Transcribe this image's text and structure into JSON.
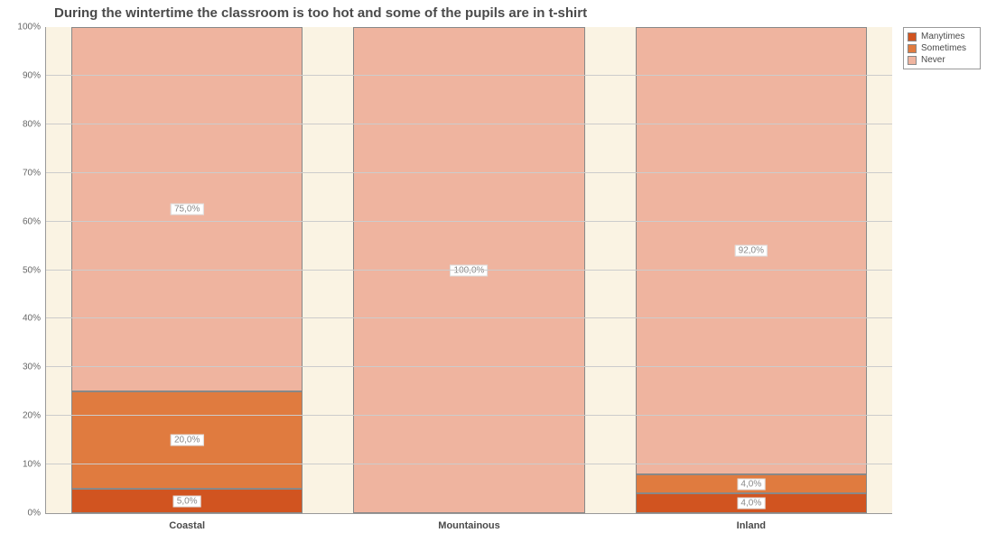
{
  "chart": {
    "type": "stacked_bar_100",
    "title": "During the wintertime the classroom is too hot and some of the pupils are in t-shirt",
    "title_fontsize": 15,
    "title_color": "#4a4a4a",
    "background_color": "#ffffff",
    "plot_background_color": "#faf3e3",
    "grid_color": "#cccccc",
    "axis_color": "#999999",
    "tick_font_size": 10,
    "tick_color": "#666666",
    "category_label_fontsize": 11,
    "category_label_color": "#4a4a4a",
    "ylim": [
      0,
      100
    ],
    "ytick_step": 10,
    "ytick_suffix": "%",
    "bar_width_ratio": 0.82,
    "gap_ratio": 0.18,
    "categories": [
      "Coastal",
      "Mountainous",
      "Inland"
    ],
    "series": [
      {
        "name": "Manytimes",
        "color": "#d15420"
      },
      {
        "name": "Sometimes",
        "color": "#e07b3f"
      },
      {
        "name": "Never",
        "color": "#efb49f"
      }
    ],
    "data": [
      {
        "category": "Coastal",
        "values": [
          {
            "series": "Manytimes",
            "value": 5.0,
            "label": "5,0%"
          },
          {
            "series": "Sometimes",
            "value": 20.0,
            "label": "20,0%"
          },
          {
            "series": "Never",
            "value": 75.0,
            "label": "75,0%"
          }
        ]
      },
      {
        "category": "Mountainous",
        "values": [
          {
            "series": "Manytimes",
            "value": 0.0,
            "label": ""
          },
          {
            "series": "Sometimes",
            "value": 0.0,
            "label": ""
          },
          {
            "series": "Never",
            "value": 100.0,
            "label": "100,0%"
          }
        ]
      },
      {
        "category": "Inland",
        "values": [
          {
            "series": "Manytimes",
            "value": 4.0,
            "label": "4,0%"
          },
          {
            "series": "Sometimes",
            "value": 4.0,
            "label": "4,0%"
          },
          {
            "series": "Never",
            "value": 92.0,
            "label": "92,0%"
          }
        ]
      }
    ],
    "value_label_fontsize": 10,
    "value_label_bg": "#ffffff",
    "value_label_color": "#888888",
    "legend": {
      "position": "top-right",
      "bg": "#ffffff",
      "border": "#999999",
      "fontsize": 10
    }
  }
}
